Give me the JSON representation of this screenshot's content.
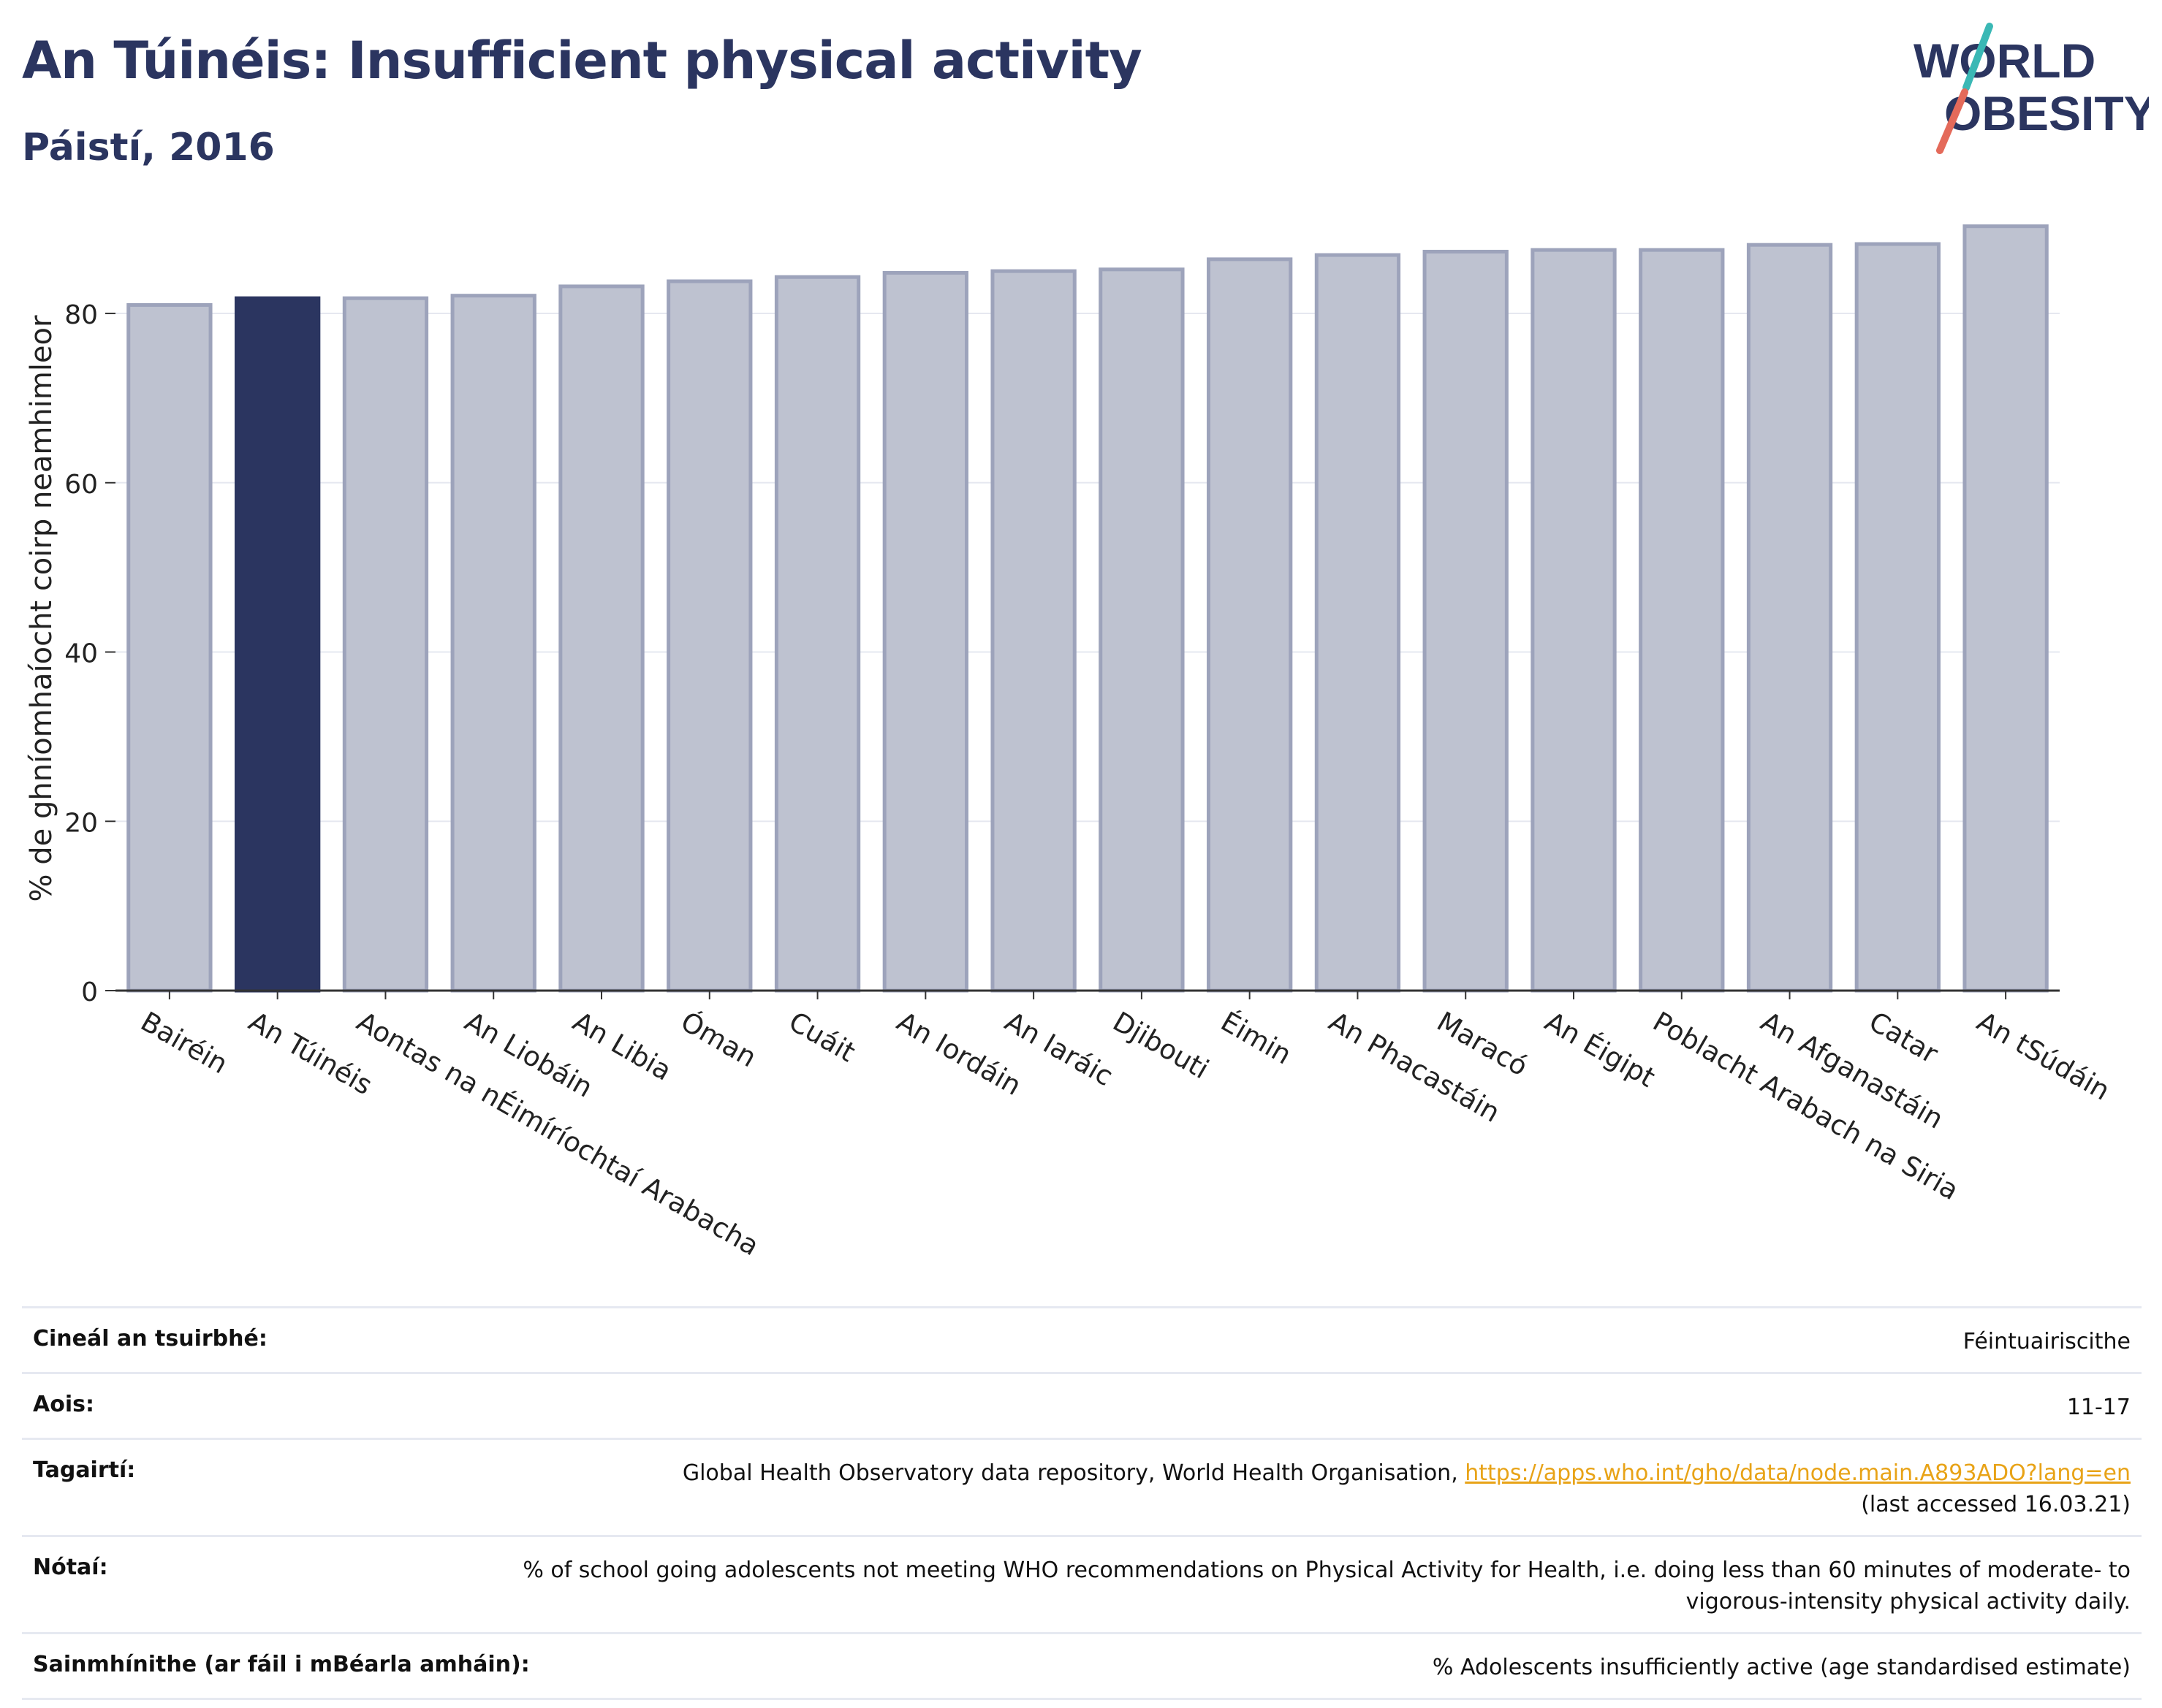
{
  "header": {
    "title": "An Túinéis: Insufficient physical activity",
    "subtitle": "Páistí, 2016"
  },
  "logo": {
    "line1": "WORLD",
    "line2": "OBESITY"
  },
  "colors": {
    "highlight": "#2b3560",
    "bar": "#bec2d0",
    "bar_edge": "#9da3bb",
    "link": "#e8a317"
  },
  "chart_data": {
    "type": "bar",
    "ylabel": "% de ghníomhaíocht coirp neamhimleor",
    "ylim": [
      0,
      92
    ],
    "yticks": [
      0,
      20,
      40,
      60,
      80
    ],
    "grid": true,
    "highlight": "An Túinéis",
    "categories": [
      "Bairéin",
      "An Túinéis",
      "Aontas na nÉimíríochtaí Arabacha",
      "An Liobáin",
      "An Libia",
      "Óman",
      "Cuáit",
      "An Iordáin",
      "An Iaráic",
      "Djibouti",
      "Éimin",
      "An Phacastáin",
      "Maracó",
      "An Éigipt",
      "Poblacht Arabach na Siria",
      "An Afganastáin",
      "Catar",
      "An tSúdáin"
    ],
    "values": [
      81.0,
      81.8,
      81.8,
      82.1,
      83.2,
      83.8,
      84.3,
      84.8,
      85.0,
      85.2,
      86.4,
      86.9,
      87.3,
      87.5,
      87.5,
      88.1,
      88.2,
      90.3
    ]
  },
  "info": [
    {
      "label": "Cineál an tsuirbhé:",
      "value": "Féintuairiscithe"
    },
    {
      "label": "Aois:",
      "value": "11-17"
    },
    {
      "label": "Tagairtí:",
      "value": "Global Health Observatory data repository, World Health Organisation, ",
      "link": "https://apps.who.int/gho/data/node.main.A893ADO?lang=en",
      "value_after": "(last accessed 16.03.21)"
    },
    {
      "label": "Nótaí:",
      "value": "% of school going adolescents not meeting WHO recommendations on Physical Activity for Health, i.e. doing less than 60 minutes of moderate- to vigorous-intensity physical activity daily."
    },
    {
      "label": "Sainmhínithe (ar fáil i mBéarla amháin):",
      "value": "% Adolescents insufficiently active (age standardised estimate)"
    }
  ]
}
